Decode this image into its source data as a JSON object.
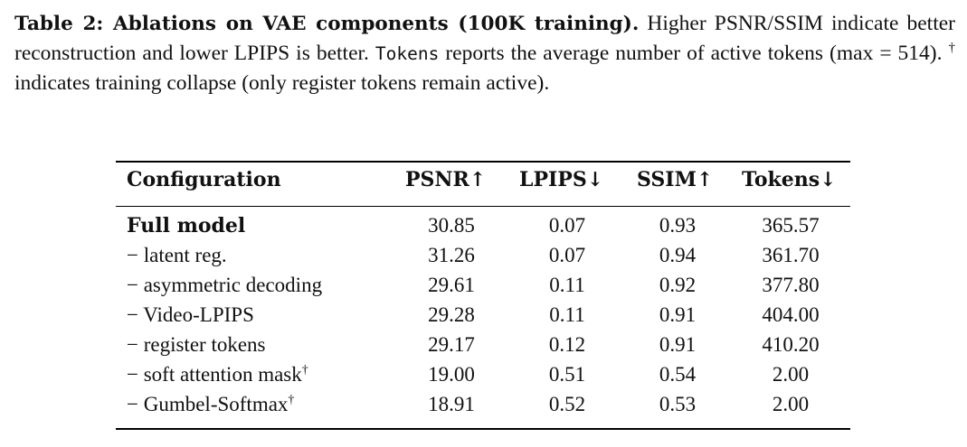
{
  "caption": {
    "label": "Table 2: Ablations on VAE components (100K training).",
    "text_1": " Higher PSNR/SSIM indicate better reconstruction and lower LPIPS is better. ",
    "tokens_word": "Tokens",
    "text_2": " reports the average number of active tokens (max = 514). ",
    "dagger": "†",
    "text_3": " indicates training collapse (only register tokens remain active)."
  },
  "table": {
    "headers": [
      "Configuration",
      "PSNR↑",
      "LPIPS↓",
      "SSIM↑",
      "Tokens↓"
    ],
    "rows": [
      {
        "config": "Full model",
        "dagger": "",
        "psnr": "30.85",
        "lpips": "0.07",
        "ssim": "0.93",
        "tokens": "365.57"
      },
      {
        "config": "− latent reg.",
        "dagger": "",
        "psnr": "31.26",
        "lpips": "0.07",
        "ssim": "0.94",
        "tokens": "361.70"
      },
      {
        "config": "− asymmetric decoding",
        "dagger": "",
        "psnr": "29.61",
        "lpips": "0.11",
        "ssim": "0.92",
        "tokens": "377.80"
      },
      {
        "config": "− Video-LPIPS",
        "dagger": "",
        "psnr": "29.28",
        "lpips": "0.11",
        "ssim": "0.91",
        "tokens": "404.00"
      },
      {
        "config": "− register tokens",
        "dagger": "",
        "psnr": "29.17",
        "lpips": "0.12",
        "ssim": "0.91",
        "tokens": "410.20"
      },
      {
        "config": "− soft attention mask",
        "dagger": "†",
        "psnr": "19.00",
        "lpips": "0.51",
        "ssim": "0.54",
        "tokens": "2.00"
      },
      {
        "config": "− Gumbel-Softmax",
        "dagger": "†",
        "psnr": "18.91",
        "lpips": "0.52",
        "ssim": "0.53",
        "tokens": "2.00"
      }
    ]
  }
}
